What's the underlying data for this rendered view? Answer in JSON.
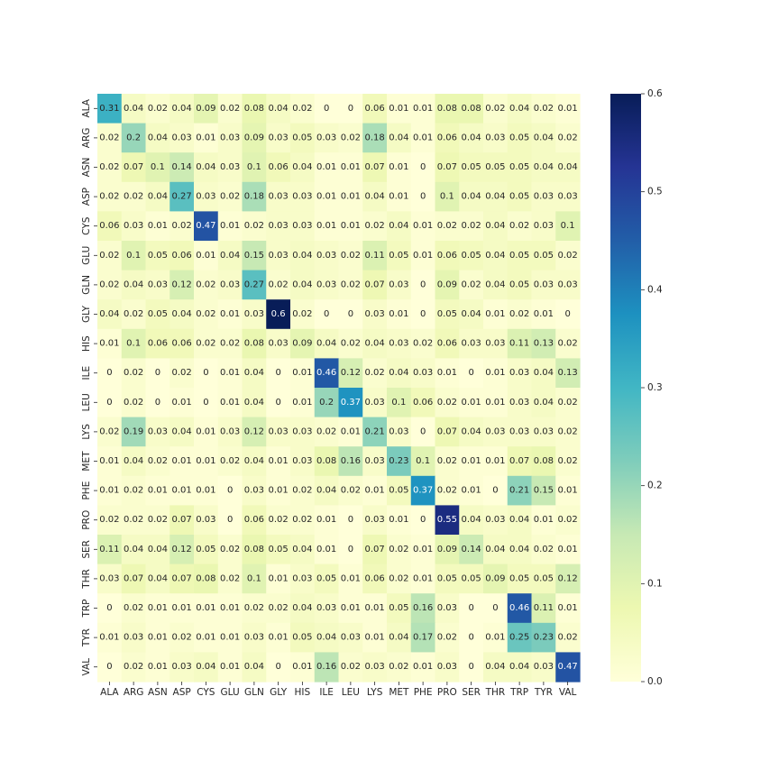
{
  "chart_data": {
    "type": "heatmap",
    "title": "",
    "xlabel": "",
    "ylabel": "",
    "row_labels": [
      "ALA",
      "ARG",
      "ASN",
      "ASP",
      "CYS",
      "GLU",
      "GLN",
      "GLY",
      "HIS",
      "ILE",
      "LEU",
      "LYS",
      "MET",
      "PHE",
      "PRO",
      "SER",
      "THR",
      "TRP",
      "TYR",
      "VAL"
    ],
    "col_labels": [
      "ALA",
      "ARG",
      "ASN",
      "ASP",
      "CYS",
      "GLU",
      "GLN",
      "GLY",
      "HIS",
      "ILE",
      "LEU",
      "LYS",
      "MET",
      "PHE",
      "PRO",
      "SER",
      "THR",
      "TRP",
      "TYR",
      "VAL"
    ],
    "values": [
      [
        0.31,
        0.04,
        0.02,
        0.04,
        0.09,
        0.02,
        0.08,
        0.04,
        0.02,
        0,
        0,
        0.06,
        0.01,
        0.01,
        0.08,
        0.08,
        0.02,
        0.04,
        0.02,
        0.01
      ],
      [
        0.02,
        0.2,
        0.04,
        0.03,
        0.01,
        0.03,
        0.09,
        0.03,
        0.05,
        0.03,
        0.02,
        0.18,
        0.04,
        0.01,
        0.06,
        0.04,
        0.03,
        0.05,
        0.04,
        0.02
      ],
      [
        0.02,
        0.07,
        0.1,
        0.14,
        0.04,
        0.03,
        0.1,
        0.06,
        0.04,
        0.01,
        0.01,
        0.07,
        0.01,
        0,
        0.07,
        0.05,
        0.05,
        0.05,
        0.04,
        0.04
      ],
      [
        0.02,
        0.02,
        0.04,
        0.27,
        0.03,
        0.02,
        0.18,
        0.03,
        0.03,
        0.01,
        0.01,
        0.04,
        0.01,
        0,
        0.1,
        0.04,
        0.04,
        0.05,
        0.03,
        0.03
      ],
      [
        0.06,
        0.03,
        0.01,
        0.02,
        0.47,
        0.01,
        0.02,
        0.03,
        0.03,
        0.01,
        0.01,
        0.02,
        0.04,
        0.01,
        0.02,
        0.02,
        0.04,
        0.02,
        0.03,
        0.1
      ],
      [
        0.02,
        0.1,
        0.05,
        0.06,
        0.01,
        0.04,
        0.15,
        0.03,
        0.04,
        0.03,
        0.02,
        0.11,
        0.05,
        0.01,
        0.06,
        0.05,
        0.04,
        0.05,
        0.05,
        0.02
      ],
      [
        0.02,
        0.04,
        0.03,
        0.12,
        0.02,
        0.03,
        0.27,
        0.02,
        0.04,
        0.03,
        0.02,
        0.07,
        0.03,
        0,
        0.09,
        0.02,
        0.04,
        0.05,
        0.03,
        0.03
      ],
      [
        0.04,
        0.02,
        0.05,
        0.04,
        0.02,
        0.01,
        0.03,
        0.6,
        0.02,
        0,
        0,
        0.03,
        0.01,
        0,
        0.05,
        0.04,
        0.01,
        0.02,
        0.01,
        0
      ],
      [
        0.01,
        0.1,
        0.06,
        0.06,
        0.02,
        0.02,
        0.08,
        0.03,
        0.09,
        0.04,
        0.02,
        0.04,
        0.03,
        0.02,
        0.06,
        0.03,
        0.03,
        0.11,
        0.13,
        0.02
      ],
      [
        0,
        0.02,
        0,
        0.02,
        0,
        0.01,
        0.04,
        0,
        0.01,
        0.46,
        0.12,
        0.02,
        0.04,
        0.03,
        0.01,
        0,
        0.01,
        0.03,
        0.04,
        0.13
      ],
      [
        0,
        0.02,
        0,
        0.01,
        0,
        0.01,
        0.04,
        0,
        0.01,
        0.2,
        0.37,
        0.03,
        0.1,
        0.06,
        0.02,
        0.01,
        0.01,
        0.03,
        0.04,
        0.02
      ],
      [
        0.02,
        0.19,
        0.03,
        0.04,
        0.01,
        0.03,
        0.12,
        0.03,
        0.03,
        0.02,
        0.01,
        0.21,
        0.03,
        0,
        0.07,
        0.04,
        0.03,
        0.03,
        0.03,
        0.02
      ],
      [
        0.01,
        0.04,
        0.02,
        0.01,
        0.01,
        0.02,
        0.04,
        0.01,
        0.03,
        0.08,
        0.16,
        0.03,
        0.23,
        0.1,
        0.02,
        0.01,
        0.01,
        0.07,
        0.08,
        0.02
      ],
      [
        0.01,
        0.02,
        0.01,
        0.01,
        0.01,
        0,
        0.03,
        0.01,
        0.02,
        0.04,
        0.02,
        0.01,
        0.05,
        0.37,
        0.02,
        0.01,
        0,
        0.21,
        0.15,
        0.01
      ],
      [
        0.02,
        0.02,
        0.02,
        0.07,
        0.03,
        0,
        0.06,
        0.02,
        0.02,
        0.01,
        0,
        0.03,
        0.01,
        0,
        0.55,
        0.04,
        0.03,
        0.04,
        0.01,
        0.02
      ],
      [
        0.11,
        0.04,
        0.04,
        0.12,
        0.05,
        0.02,
        0.08,
        0.05,
        0.04,
        0.01,
        0,
        0.07,
        0.02,
        0.01,
        0.09,
        0.14,
        0.04,
        0.04,
        0.02,
        0.01
      ],
      [
        0.03,
        0.07,
        0.04,
        0.07,
        0.08,
        0.02,
        0.1,
        0.01,
        0.03,
        0.05,
        0.01,
        0.06,
        0.02,
        0.01,
        0.05,
        0.05,
        0.09,
        0.05,
        0.05,
        0.12
      ],
      [
        0,
        0.02,
        0.01,
        0.01,
        0.01,
        0.01,
        0.02,
        0.02,
        0.04,
        0.03,
        0.01,
        0.01,
        0.05,
        0.16,
        0.03,
        0,
        0,
        0.46,
        0.11,
        0.01
      ],
      [
        0.01,
        0.03,
        0.01,
        0.02,
        0.01,
        0.01,
        0.03,
        0.01,
        0.05,
        0.04,
        0.03,
        0.01,
        0.04,
        0.17,
        0.02,
        0,
        0.01,
        0.25,
        0.23,
        0.02
      ],
      [
        0,
        0.02,
        0.01,
        0.03,
        0.04,
        0.01,
        0.04,
        0,
        0.01,
        0.16,
        0.02,
        0.03,
        0.02,
        0.01,
        0.03,
        0,
        0.04,
        0.04,
        0.03,
        0.47
      ]
    ],
    "colorbar": {
      "min": 0.0,
      "max": 0.6,
      "ticks": [
        0.0,
        0.1,
        0.2,
        0.3,
        0.4,
        0.5,
        0.6
      ],
      "tick_labels": [
        "0.0",
        "0.1",
        "0.2",
        "0.3",
        "0.4",
        "0.5",
        "0.6"
      ],
      "colormap": "YlGnBu",
      "colormap_stops": [
        "#ffffd9",
        "#edf8b1",
        "#c7e9b4",
        "#7fcdbb",
        "#41b6c4",
        "#1d91c0",
        "#225ea8",
        "#253494",
        "#081d58"
      ]
    },
    "annotation_colors": {
      "dark_text": "#262626",
      "light_text": "#ffffff"
    }
  }
}
